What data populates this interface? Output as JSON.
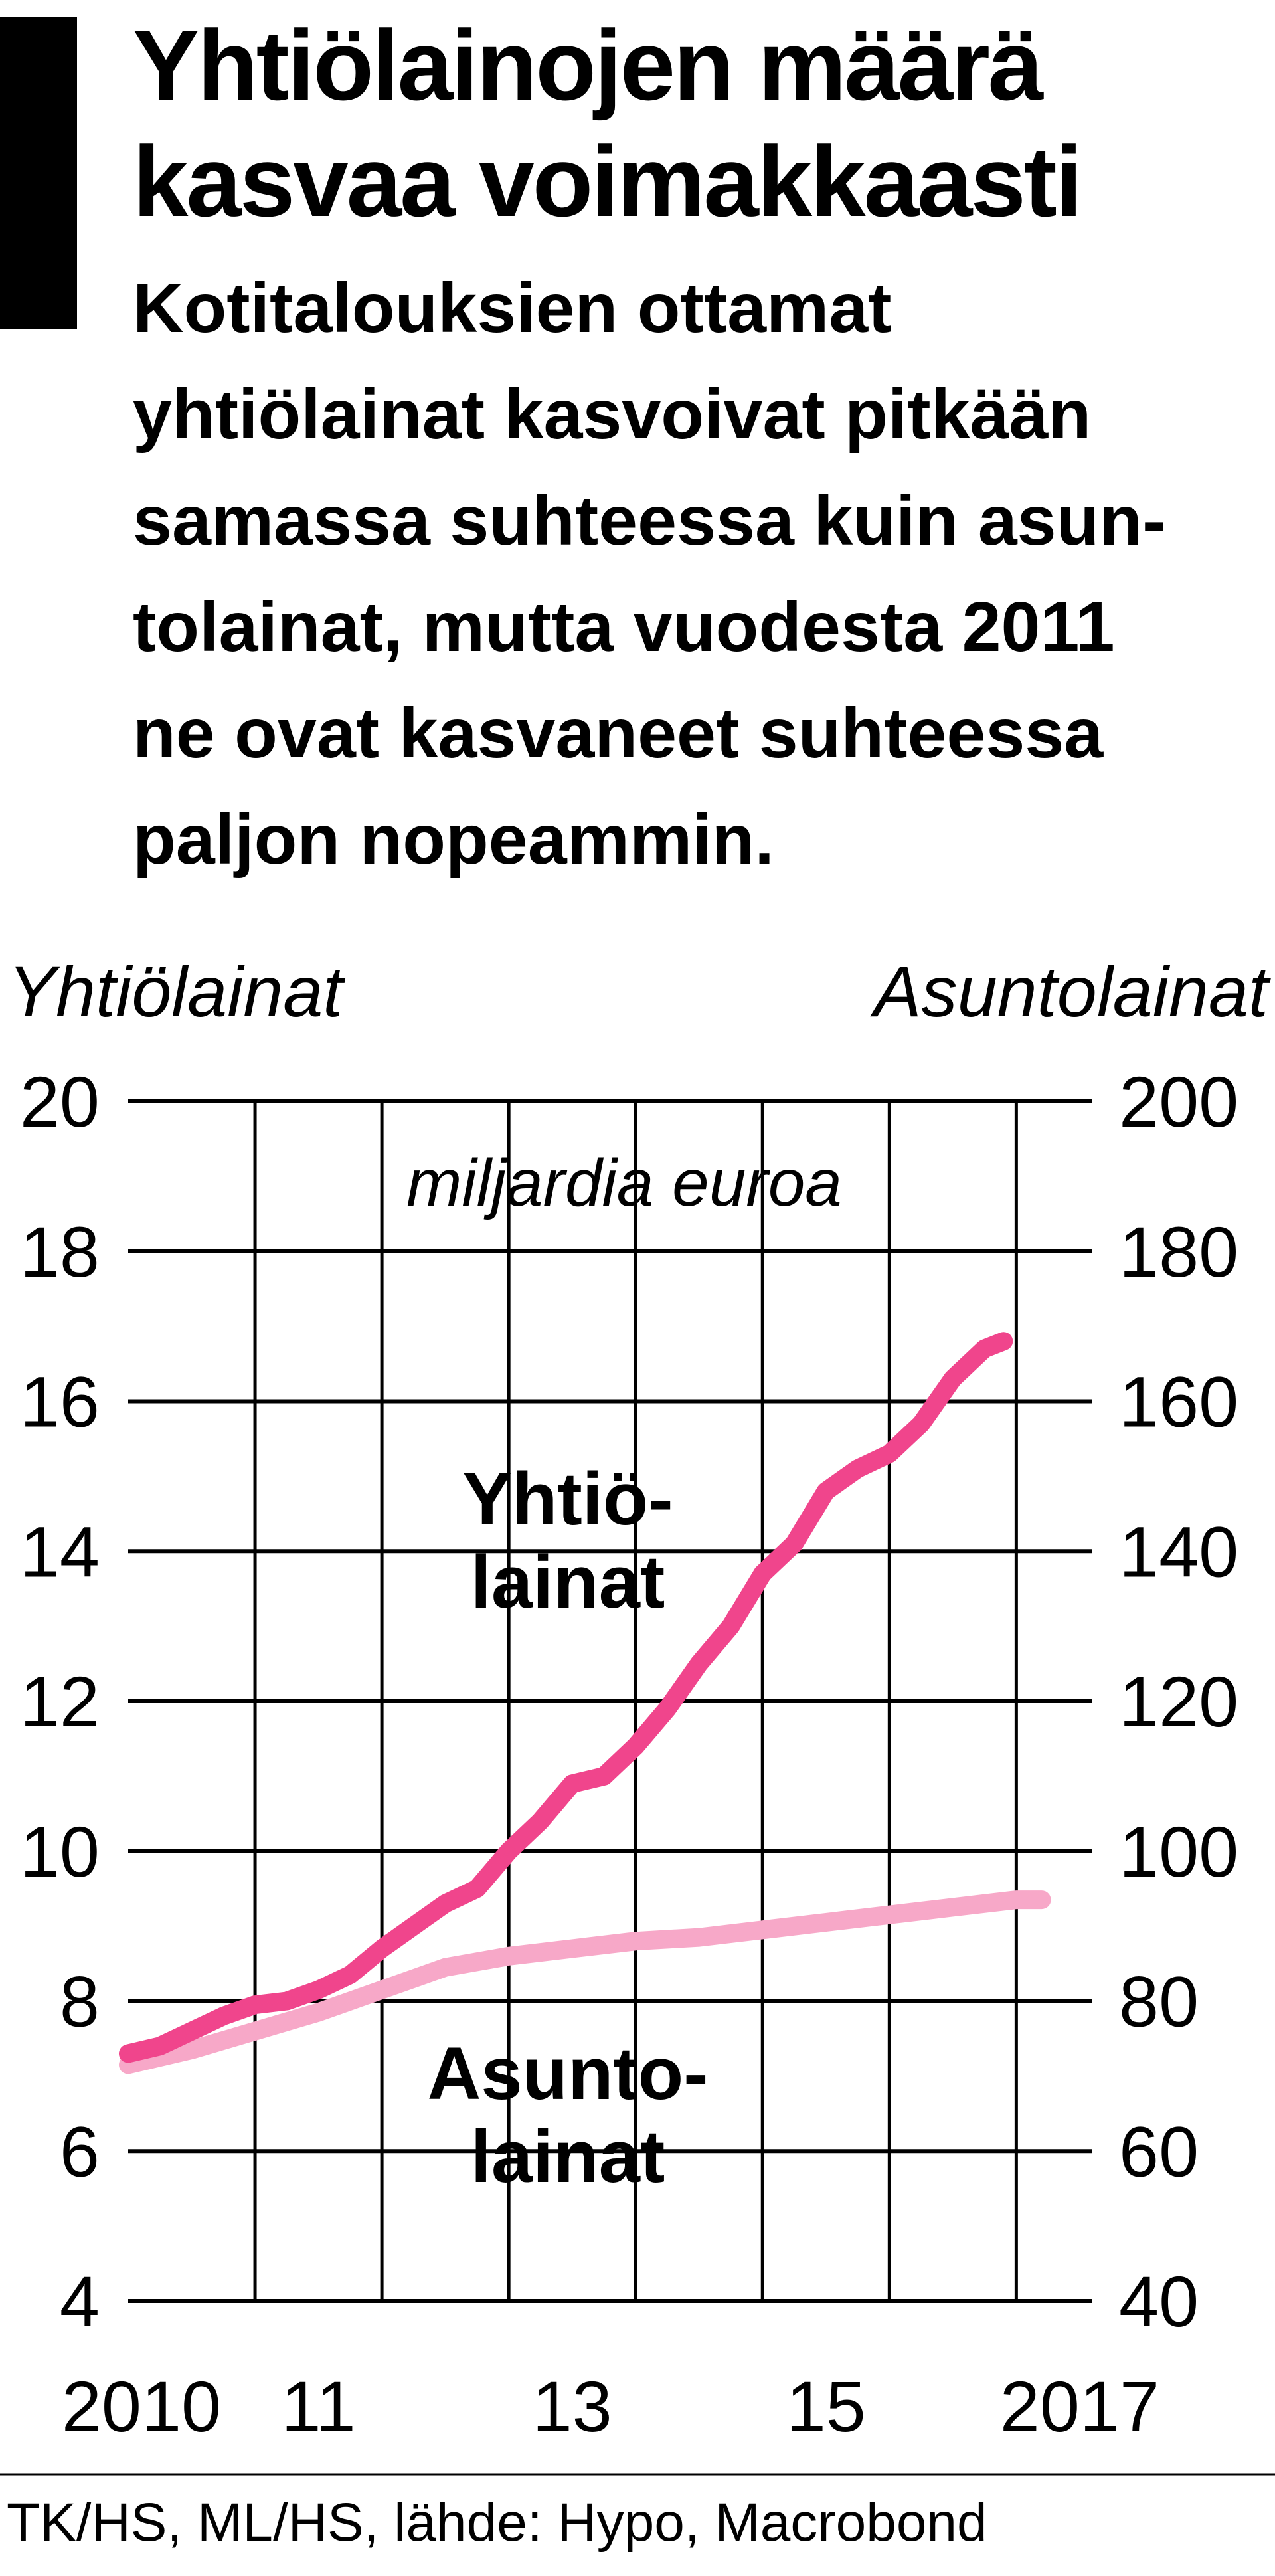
{
  "chart_data": {
    "type": "line",
    "title": [
      "Yhtiölainojen määrä",
      "kasvaa voimakkaasti"
    ],
    "subtitle": [
      "Kotitalouksien ottamat",
      "yhtiölainat kasvoivat pitkään",
      "samassa suhteessa kuin asun-",
      "tolainat, mutta vuodesta 2011",
      "ne ovat kasvaneet suhteessa",
      "paljon nopeammin."
    ],
    "y_axis_label": "Yhtiölainat",
    "y2_axis_label": "Asuntolainat",
    "unit_label": "miljardia euroa",
    "source": "TK/HS, ML/HS, lähde: Hypo, Macrobond",
    "xlim": [
      2010,
      2017.6
    ],
    "xticks": [
      2010,
      {
        "value": 2011,
        "label": "11"
      },
      {
        "value": 2013,
        "label": "13"
      },
      {
        "value": 2015,
        "label": "15"
      },
      2017
    ],
    "ylim": [
      4,
      20
    ],
    "yticks": [
      4,
      6,
      8,
      10,
      12,
      14,
      16,
      18,
      20
    ],
    "y2lim": [
      40,
      200
    ],
    "y2ticks": [
      40,
      60,
      80,
      100,
      120,
      140,
      160,
      180,
      200
    ],
    "grid": true,
    "series": [
      {
        "name_lines": [
          "Asunto-",
          "lainat"
        ],
        "color": "#f7a8c8",
        "axis": "y2",
        "x": [
          2010,
          2010.5,
          2011,
          2011.5,
          2012,
          2012.5,
          2013,
          2013.5,
          2014,
          2014.5,
          2015,
          2015.5,
          2016,
          2016.5,
          2017,
          2017.2
        ],
        "values": [
          71.5,
          73.5,
          76,
          78.5,
          81.5,
          84.5,
          86,
          87,
          88,
          88.5,
          89.5,
          90.5,
          91.5,
          92.5,
          93.5,
          93.5
        ]
      },
      {
        "name_lines": [
          "Yhtiö-",
          "lainat"
        ],
        "color": "#f0458c",
        "axis": "y",
        "x": [
          2010,
          2010.25,
          2010.5,
          2010.75,
          2011,
          2011.25,
          2011.5,
          2011.75,
          2012,
          2012.25,
          2012.5,
          2012.75,
          2013,
          2013.25,
          2013.5,
          2013.75,
          2014,
          2014.25,
          2014.5,
          2014.75,
          2015,
          2015.25,
          2015.5,
          2015.75,
          2016,
          2016.25,
          2016.5,
          2016.75,
          2016.9
        ],
        "values": [
          7.3,
          7.4,
          7.6,
          7.8,
          7.95,
          8.0,
          8.15,
          8.35,
          8.7,
          9.0,
          9.3,
          9.5,
          10.0,
          10.4,
          10.9,
          11.0,
          11.4,
          11.9,
          12.5,
          13.0,
          13.7,
          14.1,
          14.8,
          15.1,
          15.3,
          15.7,
          16.3,
          16.7,
          16.8
        ]
      }
    ]
  }
}
